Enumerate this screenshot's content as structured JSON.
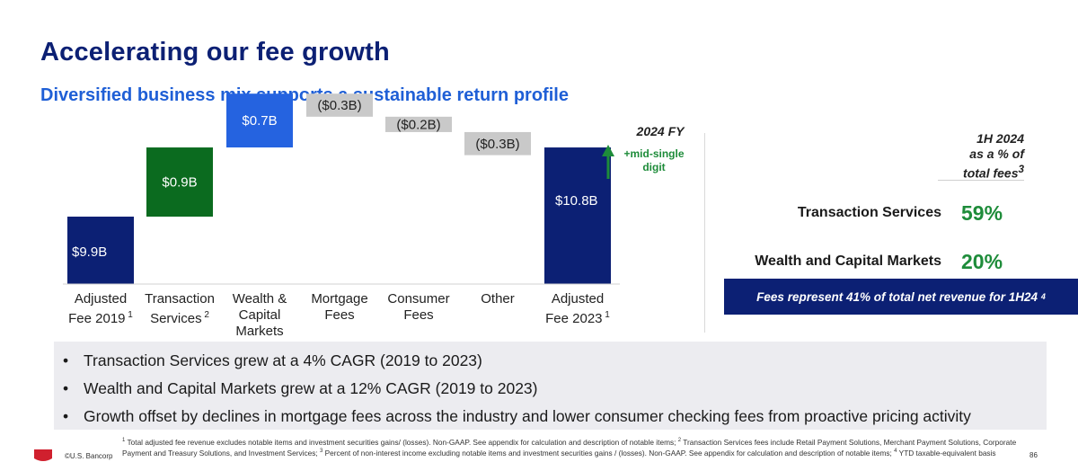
{
  "header": {
    "title": "Accelerating our fee growth",
    "subtitle": "Diversified business mix supports a sustainable return profile"
  },
  "chart_data": {
    "type": "bar",
    "subtype": "waterfall",
    "unit": "$B",
    "categories": [
      {
        "line1": "Adjusted",
        "line2": "Fee 2019",
        "line3": "",
        "sup": "1"
      },
      {
        "line1": "Transaction",
        "line2": "Services",
        "line3": "",
        "sup": "2"
      },
      {
        "line1": "Wealth &",
        "line2": "Capital",
        "line3": "Markets",
        "sup": ""
      },
      {
        "line1": "Mortgage",
        "line2": "Fees",
        "line3": "",
        "sup": ""
      },
      {
        "line1": "Consumer",
        "line2": "Fees",
        "line3": "",
        "sup": ""
      },
      {
        "line1": "Other",
        "line2": "",
        "line3": "",
        "sup": ""
      },
      {
        "line1": "Adjusted",
        "line2": "Fee 2023",
        "line3": "",
        "sup": "1"
      }
    ],
    "values": [
      9.9,
      0.9,
      0.7,
      -0.3,
      -0.2,
      -0.3,
      10.8
    ],
    "kinds": [
      "total",
      "increase",
      "increase",
      "decrease",
      "decrease",
      "decrease",
      "total"
    ],
    "labels": [
      "$9.9B",
      "$0.9B",
      "$0.7B",
      "($0.3B)",
      "($0.2B)",
      "($0.3B)",
      "$10.8B"
    ],
    "colors": {
      "total": "#0c2074",
      "increase_1": "#0b6b1f",
      "increase_2": "#2563e0",
      "decrease": "#c9c9c9"
    },
    "annotation": {
      "heading": "2024 FY",
      "text_line1": "+mid-single",
      "text_line2": "digit",
      "arrow_color": "#1e8c3a"
    }
  },
  "fee_mix": {
    "heading_line1": "1H 2024",
    "heading_line2": "as a % of",
    "heading_line3": "total fees",
    "heading_sup": "3",
    "segments": [
      {
        "name": "Transaction Services",
        "pct": "59%"
      },
      {
        "name": "Wealth and Capital Markets",
        "pct": "20%"
      }
    ],
    "box_text": "Fees represent 41% of total net revenue for 1H24",
    "box_sup": "4"
  },
  "bullets": [
    "Transaction Services grew at a 4% CAGR (2019 to 2023)",
    "Wealth and Capital Markets grew at a 12% CAGR (2019 to 2023)",
    "Growth offset by declines in mortgage fees across the industry and lower consumer checking fees from proactive pricing activity"
  ],
  "bullet_glyph": "•",
  "footer": {
    "copyright": "©U.S. Bancorp",
    "page": "86",
    "fn1_num": "1",
    "fn1": " Total adjusted fee revenue excludes notable items and investment securities gains/ (losses). Non-GAAP. See appendix for calculation and description of notable items; ",
    "fn2_num": "2",
    "fn2": " Transaction Services fees include Retail Payment Solutions, Merchant Payment Solutions, Corporate Payment and Treasury Solutions, and Investment Services; ",
    "fn3_num": "3",
    "fn3": " Percent of non-interest income excluding notable items and investment securities gains / (losses). Non-GAAP. See appendix for calculation and description of notable items; ",
    "fn4_num": "4",
    "fn4": " YTD taxable-equivalent basis",
    "logo_color": "#d0202e"
  }
}
